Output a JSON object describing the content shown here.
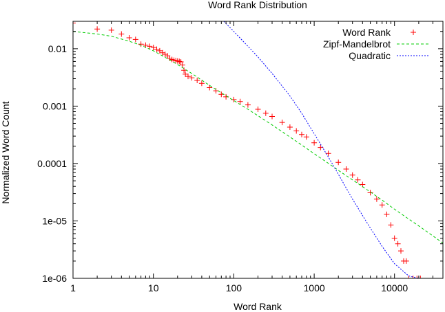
{
  "chart_data": {
    "type": "scatter",
    "title": "Word Rank Distribution",
    "xlabel": "Word Rank",
    "ylabel": "Normalized Word Count",
    "x_scale": "log",
    "y_scale": "log",
    "xlim": [
      1,
      40000
    ],
    "ylim": [
      1e-06,
      0.03
    ],
    "grid": false,
    "legend_position": "top-right",
    "x_ticks": [
      {
        "value": 1,
        "label": "1"
      },
      {
        "value": 10,
        "label": "10"
      },
      {
        "value": 100,
        "label": "100"
      },
      {
        "value": 1000,
        "label": "1000"
      },
      {
        "value": 10000,
        "label": "10000"
      }
    ],
    "y_ticks": [
      {
        "value": 0.01,
        "label": "0.01"
      },
      {
        "value": 0.001,
        "label": "0.001"
      },
      {
        "value": 0.0001,
        "label": "0.0001"
      },
      {
        "value": 1e-05,
        "label": "1e-05"
      },
      {
        "value": 1e-06,
        "label": "1e-06"
      }
    ],
    "series": [
      {
        "name": "Word Rank",
        "kind": "points",
        "marker": "plus",
        "color": "#ff0000",
        "points": [
          [
            1,
            0.028
          ],
          [
            2,
            0.022
          ],
          [
            3,
            0.021
          ],
          [
            4,
            0.018
          ],
          [
            5,
            0.0155
          ],
          [
            6,
            0.0145
          ],
          [
            7,
            0.012
          ],
          [
            8,
            0.0115
          ],
          [
            9,
            0.011
          ],
          [
            10,
            0.0105
          ],
          [
            11,
            0.0098
          ],
          [
            12,
            0.0092
          ],
          [
            13,
            0.0085
          ],
          [
            14,
            0.008
          ],
          [
            15,
            0.0075
          ],
          [
            16,
            0.0068
          ],
          [
            17,
            0.0065
          ],
          [
            18,
            0.0063
          ],
          [
            19,
            0.0062
          ],
          [
            20,
            0.0061
          ],
          [
            21,
            0.006
          ],
          [
            22,
            0.0059
          ],
          [
            23,
            0.0052
          ],
          [
            24,
            0.0042
          ],
          [
            25,
            0.0036
          ],
          [
            27,
            0.0033
          ],
          [
            30,
            0.0031
          ],
          [
            35,
            0.0028
          ],
          [
            40,
            0.0025
          ],
          [
            50,
            0.0021
          ],
          [
            60,
            0.00185
          ],
          [
            70,
            0.0016
          ],
          [
            80,
            0.00145
          ],
          [
            100,
            0.0013
          ],
          [
            120,
            0.0012
          ],
          [
            150,
            0.00105
          ],
          [
            200,
            0.00088
          ],
          [
            250,
            0.00075
          ],
          [
            300,
            0.00066
          ],
          [
            400,
            0.00052
          ],
          [
            500,
            0.00043
          ],
          [
            600,
            0.00037
          ],
          [
            700,
            0.00032
          ],
          [
            800,
            0.00029
          ],
          [
            1000,
            0.00023
          ],
          [
            1200,
            0.00019
          ],
          [
            1500,
            0.00015
          ],
          [
            2000,
            0.000105
          ],
          [
            2500,
            8e-05
          ],
          [
            3000,
            6.3e-05
          ],
          [
            3500,
            5.2e-05
          ],
          [
            4000,
            4.3e-05
          ],
          [
            5000,
            3.1e-05
          ],
          [
            6000,
            2.4e-05
          ],
          [
            7000,
            1.9e-05
          ],
          [
            8000,
            1.3e-05
          ],
          [
            9000,
            8.5e-06
          ],
          [
            10000,
            5e-06
          ],
          [
            11000,
            4e-06
          ],
          [
            12000,
            3e-06
          ],
          [
            13000,
            2e-06
          ],
          [
            14000,
            2e-06
          ],
          [
            15000,
            1e-06
          ],
          [
            17000,
            1e-06
          ],
          [
            19000,
            1e-06
          ],
          [
            21000,
            1e-06
          ]
        ]
      },
      {
        "name": "Zipf-Mandelbrot",
        "kind": "line",
        "dash": "dashed",
        "color": "#00cc00",
        "points": [
          [
            1,
            0.02
          ],
          [
            2,
            0.018
          ],
          [
            3,
            0.0165
          ],
          [
            5,
            0.0135
          ],
          [
            7,
            0.0115
          ],
          [
            10,
            0.0092
          ],
          [
            15,
            0.0067
          ],
          [
            20,
            0.0053
          ],
          [
            30,
            0.0037
          ],
          [
            50,
            0.0023
          ],
          [
            70,
            0.0017
          ],
          [
            100,
            0.00125
          ],
          [
            150,
            0.00088
          ],
          [
            200,
            0.00068
          ],
          [
            300,
            0.00047
          ],
          [
            500,
            0.00029
          ],
          [
            700,
            0.00021
          ],
          [
            1000,
            0.000148
          ],
          [
            1500,
            0.000101
          ],
          [
            2000,
            7.6e-05
          ],
          [
            3000,
            5.2e-05
          ],
          [
            5000,
            3.2e-05
          ],
          [
            7000,
            2.3e-05
          ],
          [
            10000,
            1.6e-05
          ],
          [
            15000,
            1.08e-05
          ],
          [
            20000,
            8.2e-06
          ],
          [
            30000,
            5.5e-06
          ],
          [
            40000,
            4.1e-06
          ]
        ]
      },
      {
        "name": "Quadratic",
        "kind": "line",
        "dash": "dotted",
        "color": "#0000ff",
        "points": [
          [
            75,
            0.03
          ],
          [
            100,
            0.02
          ],
          [
            150,
            0.011
          ],
          [
            200,
            0.0072
          ],
          [
            300,
            0.0037
          ],
          [
            500,
            0.0015
          ],
          [
            700,
            0.00075
          ],
          [
            1000,
            0.00033
          ],
          [
            1500,
            0.00013
          ],
          [
            2000,
            6.5e-05
          ],
          [
            3000,
            2.4e-05
          ],
          [
            5000,
            7.5e-06
          ],
          [
            7000,
            3.6e-06
          ],
          [
            10000,
            1.8e-06
          ],
          [
            15000,
            1.1e-06
          ],
          [
            20000,
            1e-06
          ]
        ]
      }
    ]
  }
}
